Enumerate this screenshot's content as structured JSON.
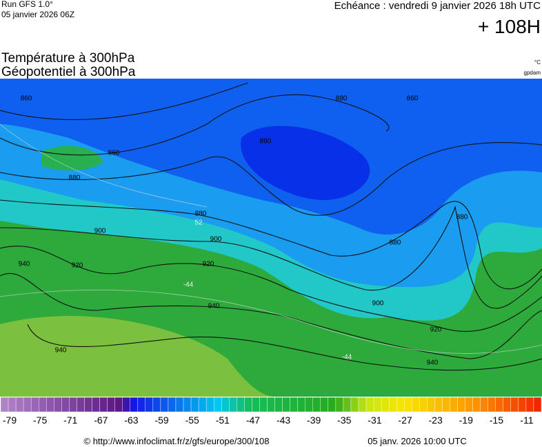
{
  "header": {
    "run": "Run GFS 1.0°",
    "run_date": "05 janvier 2026 06Z",
    "valid": "Echéance : vendredi 9 janvier 2026 18h UTC",
    "lead": "+ 108H",
    "title_1": "Température à 300hPa",
    "title_2": "Géopotentiel à 300hPa",
    "unit_1": "°C",
    "unit_2": "gpdam"
  },
  "map": {
    "contour_labels": [
      "860",
      "860",
      "880",
      "880",
      "860",
      "860",
      "880",
      "900",
      "920",
      "940",
      "940",
      "940",
      "920",
      "900",
      "880",
      "880",
      "900",
      "920",
      "940",
      "-44",
      "-44",
      "52"
    ]
  },
  "scale": {
    "labels": [
      -79,
      -75,
      -71,
      -67,
      -63,
      -59,
      -55,
      -51,
      -47,
      -43,
      -39,
      -35,
      -31,
      -27,
      -23,
      -19,
      -15,
      -11
    ]
  },
  "footer": {
    "source": "© http://www.infoclimat.fr/z/gfs/europe/300/108",
    "issued": "05 janv. 2026 10:00 UTC"
  }
}
